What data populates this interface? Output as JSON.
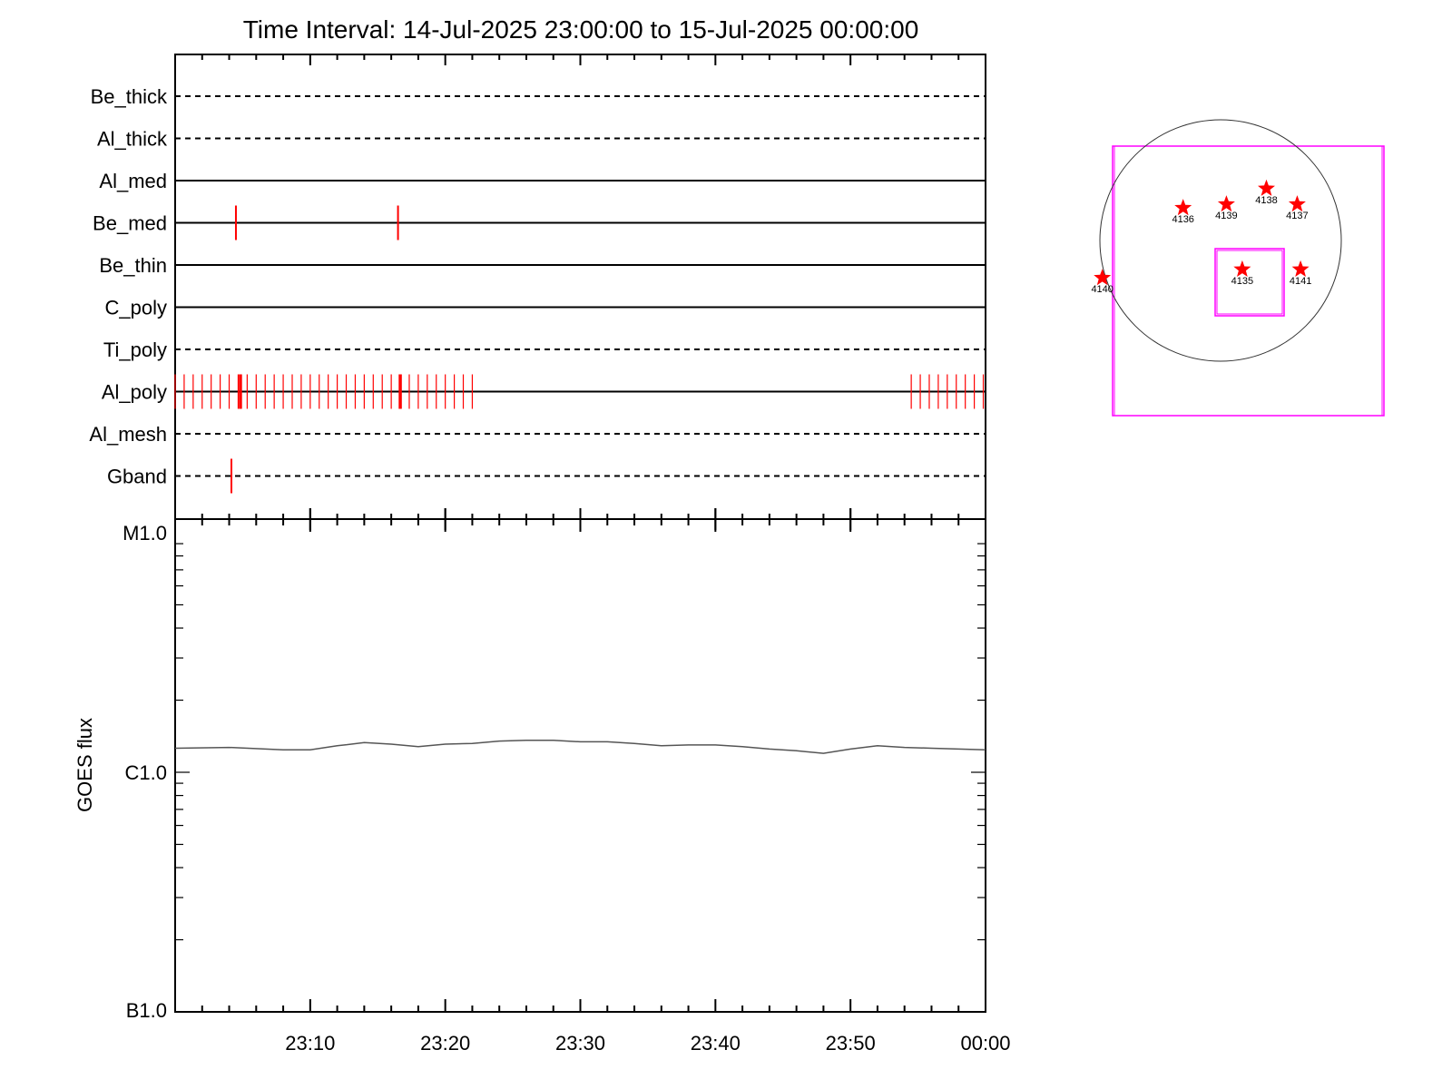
{
  "chart_data": [
    {
      "type": "event-timeline",
      "title": "Time Interval: 14-Jul-2025 23:00:00 to 15-Jul-2025 00:00:00",
      "x_range": [
        "23:00",
        "00:00"
      ],
      "channels": [
        {
          "name": "Be_thick",
          "line": "dashed",
          "events": []
        },
        {
          "name": "Al_thick",
          "line": "dashed",
          "events": []
        },
        {
          "name": "Al_med",
          "line": "solid",
          "events": []
        },
        {
          "name": "Be_med",
          "line": "solid",
          "events": [
            "23:04:30",
            "23:16:30"
          ]
        },
        {
          "name": "Be_thin",
          "line": "solid",
          "events": []
        },
        {
          "name": "C_poly",
          "line": "solid",
          "events": []
        },
        {
          "name": "Ti_poly",
          "line": "dashed",
          "events": []
        },
        {
          "name": "Al_poly",
          "line": "solid",
          "events": [],
          "event_bursts": [
            {
              "start": "23:00:00",
              "end": "23:22:10",
              "interval_s": 40,
              "bold": [
                "23:04:50",
                "23:16:40"
              ]
            },
            {
              "start": "23:54:30",
              "end": "00:00:00",
              "interval_s": 40
            }
          ]
        },
        {
          "name": "Al_mesh",
          "line": "dashed",
          "events": []
        },
        {
          "name": "Gband",
          "line": "dashed",
          "events": [
            "23:04:10"
          ]
        }
      ],
      "event_color": "#ff0000"
    },
    {
      "type": "line",
      "ylabel": "GOES flux",
      "y_scale": "log",
      "yticks": [
        {
          "label": "B1.0",
          "value": 1e-07
        },
        {
          "label": "C1.0",
          "value": 1e-06
        },
        {
          "label": "M1.0",
          "value": 1e-05
        }
      ],
      "ylim": [
        1e-07,
        1e-05
      ],
      "xticks": [
        "23:10",
        "23:20",
        "23:30",
        "23:40",
        "23:50",
        "00:00"
      ],
      "x_range": [
        "23:00",
        "00:00"
      ],
      "series": [
        {
          "color": "#555555",
          "x": [
            "23:00",
            "23:04",
            "23:08",
            "23:10",
            "23:12",
            "23:14",
            "23:16",
            "23:18",
            "23:20",
            "23:22",
            "23:24",
            "23:26",
            "23:28",
            "23:30",
            "23:32",
            "23:34",
            "23:36",
            "23:38",
            "23:40",
            "23:42",
            "23:44",
            "23:46",
            "23:48",
            "23:50",
            "23:52",
            "23:54",
            "23:56",
            "23:58",
            "00:00"
          ],
          "y": [
            1.26e-06,
            1.27e-06,
            1.24e-06,
            1.24e-06,
            1.29e-06,
            1.33e-06,
            1.31e-06,
            1.28e-06,
            1.31e-06,
            1.32e-06,
            1.35e-06,
            1.36e-06,
            1.36e-06,
            1.34e-06,
            1.34e-06,
            1.32e-06,
            1.29e-06,
            1.3e-06,
            1.3e-06,
            1.28e-06,
            1.25e-06,
            1.23e-06,
            1.2e-06,
            1.25e-06,
            1.29e-06,
            1.27e-06,
            1.26e-06,
            1.25e-06,
            1.24e-06
          ]
        }
      ]
    },
    {
      "type": "scatter",
      "description_labels": [],
      "active_regions": [
        {
          "label": "4136",
          "x": -0.45,
          "y": 0.27
        },
        {
          "label": "4139",
          "x": 0.07,
          "y": 0.3
        },
        {
          "label": "4138",
          "x": 0.55,
          "y": 0.43
        },
        {
          "label": "4137",
          "x": 0.92,
          "y": 0.3
        },
        {
          "label": "4140",
          "x": -1.42,
          "y": -0.31
        },
        {
          "label": "4135",
          "x": 0.26,
          "y": -0.24
        },
        {
          "label": "4141",
          "x": 0.96,
          "y": -0.24
        }
      ],
      "marker_color": "#ff0000",
      "box_color": "#ff00ff"
    }
  ]
}
